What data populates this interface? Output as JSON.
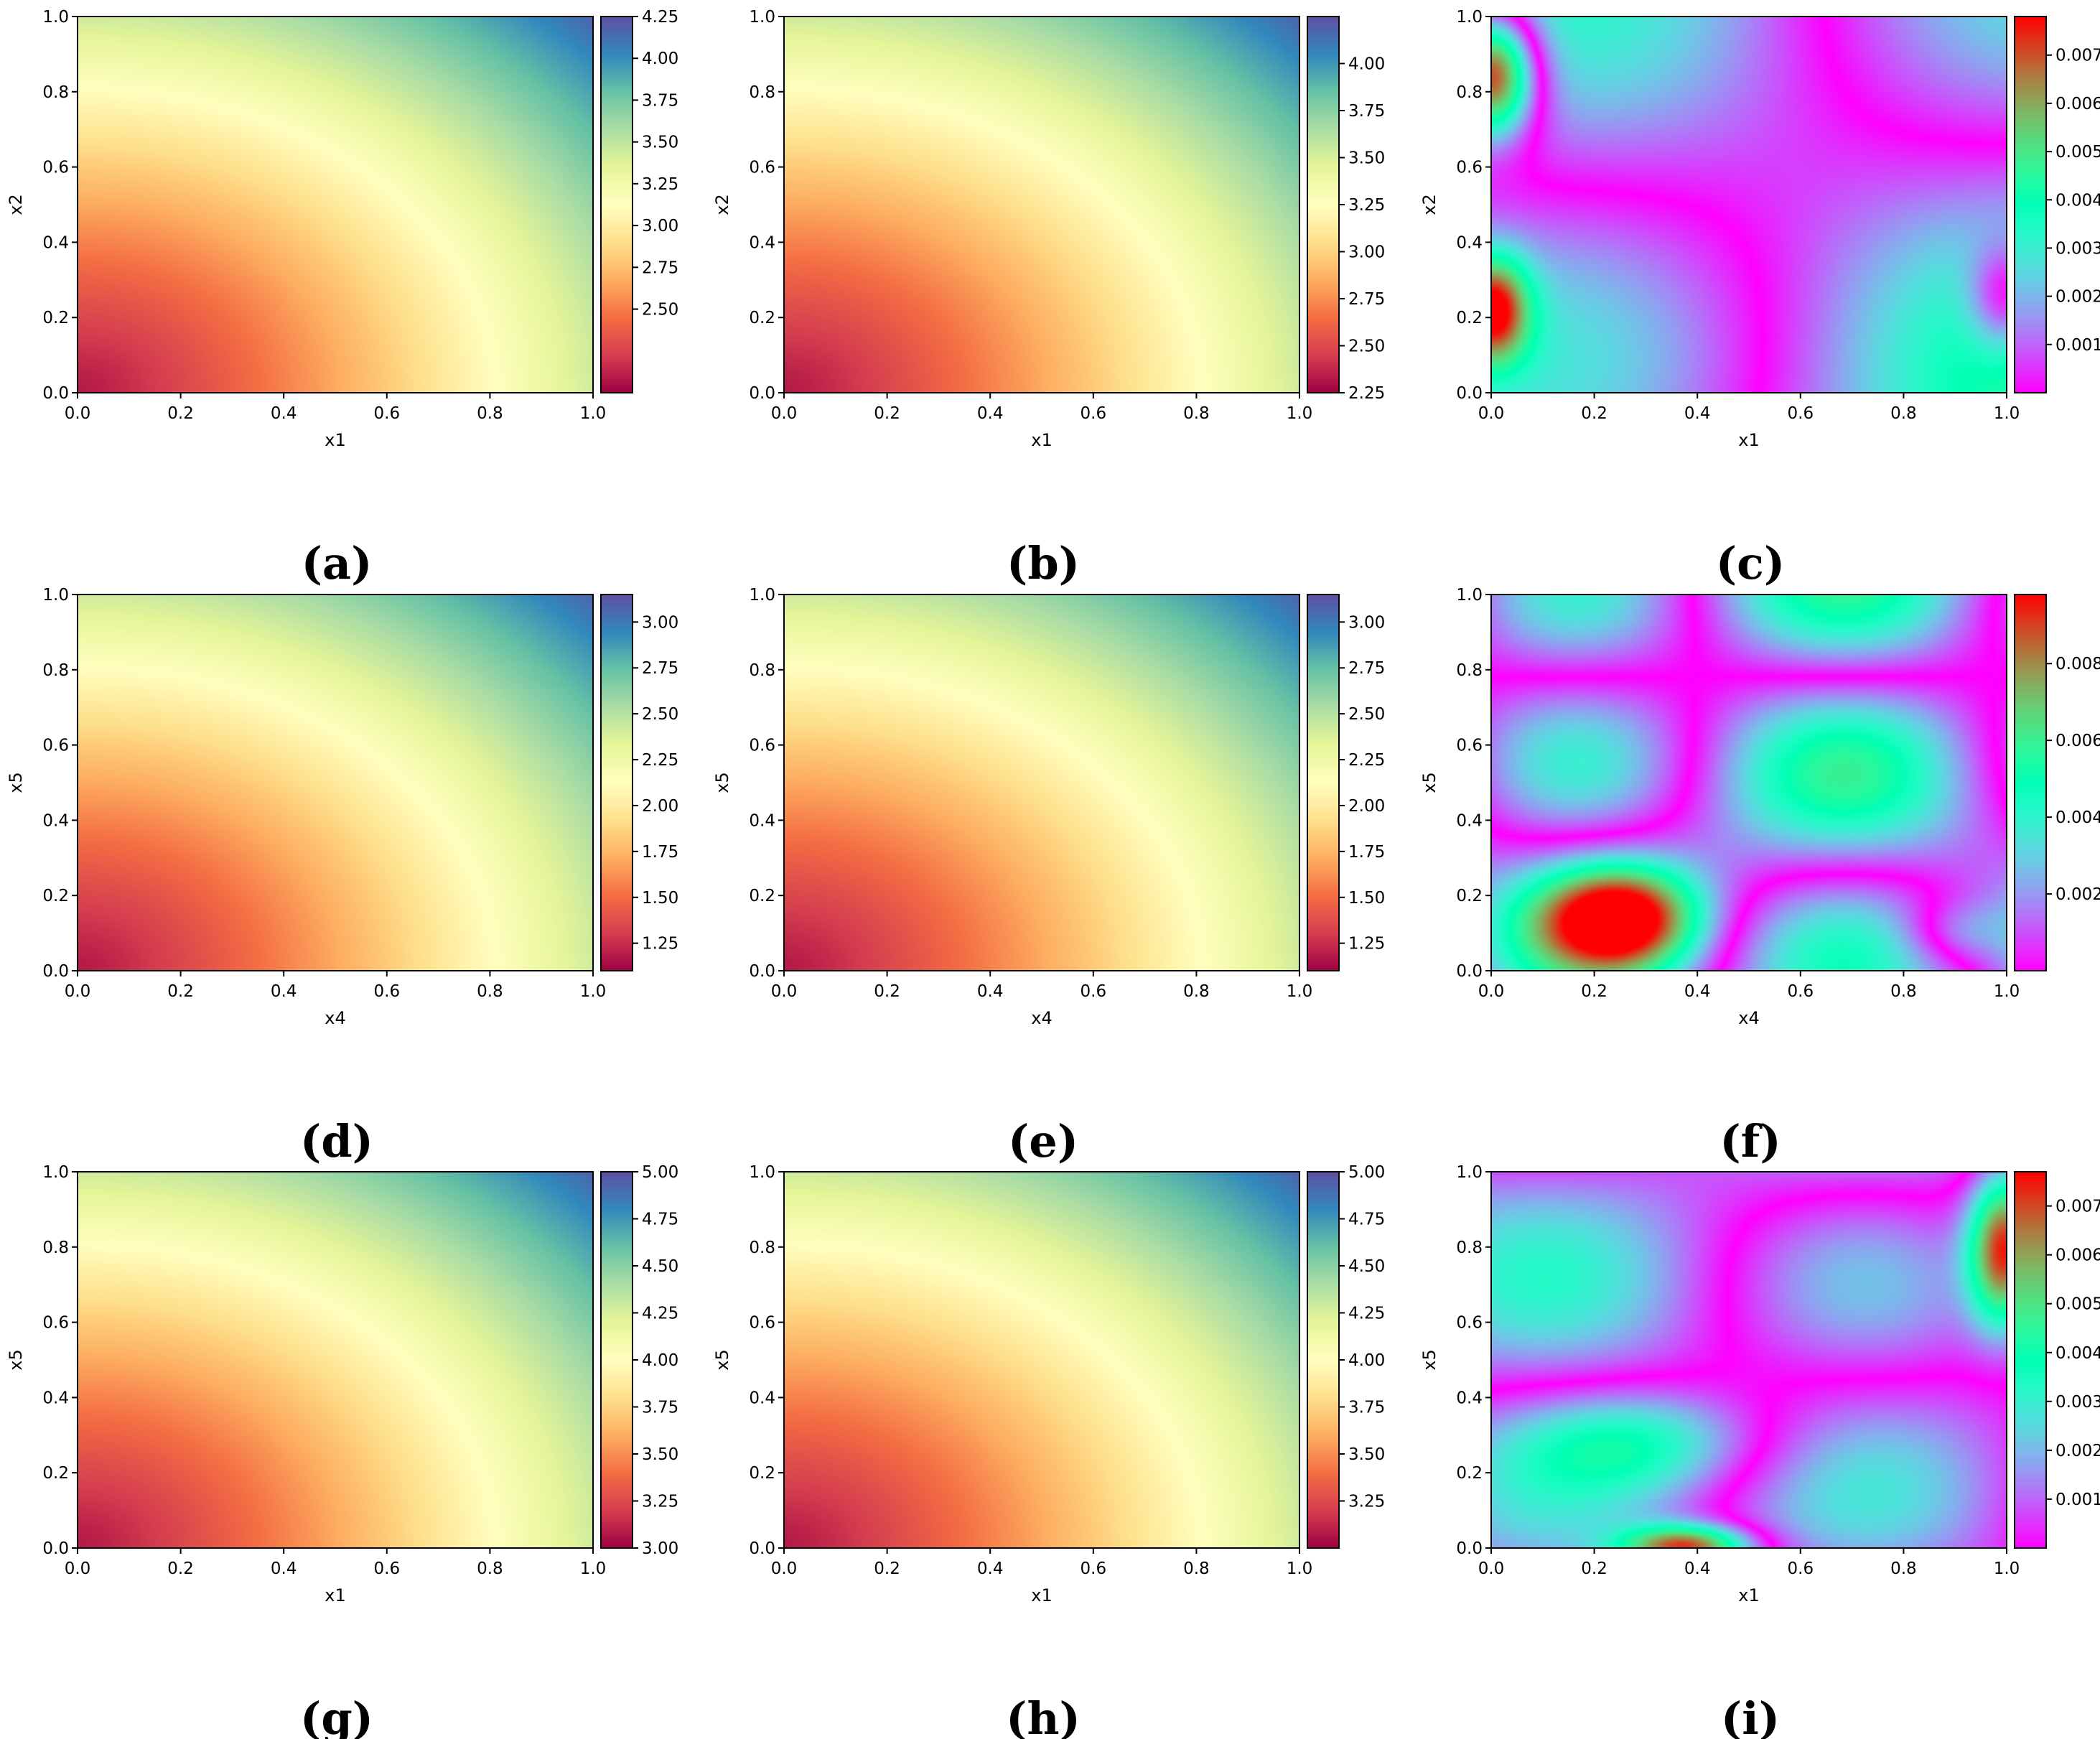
{
  "chart_data": [
    {
      "type": "heatmap",
      "caption": "(a)",
      "xlabel": "x1",
      "ylabel": "x2",
      "xlim": [
        0,
        1
      ],
      "ylim": [
        0,
        1
      ],
      "colormap": "Spectral",
      "xticks": [
        "0.0",
        "0.2",
        "0.4",
        "0.6",
        "0.8",
        "1.0"
      ],
      "yticks": [
        "0.0",
        "0.2",
        "0.4",
        "0.6",
        "0.8",
        "1.0"
      ],
      "colorbar": {
        "min": 2.0,
        "max": 4.25,
        "ticks": [
          2.5,
          2.75,
          3.0,
          3.25,
          3.5,
          3.75,
          4.0,
          4.25
        ],
        "ticklabels": [
          "2.50",
          "2.75",
          "3.00",
          "3.25",
          "3.50",
          "3.75",
          "4.00",
          "4.25"
        ]
      }
    },
    {
      "type": "heatmap",
      "caption": "(b)",
      "xlabel": "x1",
      "ylabel": "x2",
      "xlim": [
        0,
        1
      ],
      "ylim": [
        0,
        1
      ],
      "colormap": "Spectral",
      "xticks": [
        "0.0",
        "0.2",
        "0.4",
        "0.6",
        "0.8",
        "1.0"
      ],
      "yticks": [
        "0.0",
        "0.2",
        "0.4",
        "0.6",
        "0.8",
        "1.0"
      ],
      "colorbar": {
        "min": 2.25,
        "max": 4.25,
        "ticks": [
          2.25,
          2.5,
          2.75,
          3.0,
          3.25,
          3.5,
          3.75,
          4.0
        ],
        "ticklabels": [
          "2.25",
          "2.50",
          "2.75",
          "3.00",
          "3.25",
          "3.50",
          "3.75",
          "4.00"
        ]
      }
    },
    {
      "type": "heatmap",
      "caption": "(c)",
      "xlabel": "x1",
      "ylabel": "x2",
      "xlim": [
        0,
        1
      ],
      "ylim": [
        0,
        1
      ],
      "colormap": "rainbow",
      "xticks": [
        "0.0",
        "0.2",
        "0.4",
        "0.6",
        "0.8",
        "1.0"
      ],
      "yticks": [
        "0.0",
        "0.2",
        "0.4",
        "0.6",
        "0.8",
        "1.0"
      ],
      "colorbar": {
        "min": 0.0,
        "max": 0.0078,
        "ticks": [
          0.001,
          0.002,
          0.003,
          0.004,
          0.005,
          0.006,
          0.007
        ],
        "ticklabels": [
          "0.001",
          "0.002",
          "0.003",
          "0.004",
          "0.005",
          "0.006",
          "0.007"
        ]
      }
    },
    {
      "type": "heatmap",
      "caption": "(d)",
      "xlabel": "x4",
      "ylabel": "x5",
      "xlim": [
        0,
        1
      ],
      "ylim": [
        0,
        1
      ],
      "colormap": "Spectral",
      "xticks": [
        "0.0",
        "0.2",
        "0.4",
        "0.6",
        "0.8",
        "1.0"
      ],
      "yticks": [
        "0.0",
        "0.2",
        "0.4",
        "0.6",
        "0.8",
        "1.0"
      ],
      "colorbar": {
        "min": 1.1,
        "max": 3.15,
        "ticks": [
          1.25,
          1.5,
          1.75,
          2.0,
          2.25,
          2.5,
          2.75,
          3.0
        ],
        "ticklabels": [
          "1.25",
          "1.50",
          "1.75",
          "2.00",
          "2.25",
          "2.50",
          "2.75",
          "3.00"
        ]
      }
    },
    {
      "type": "heatmap",
      "caption": "(e)",
      "xlabel": "x4",
      "ylabel": "x5",
      "xlim": [
        0,
        1
      ],
      "ylim": [
        0,
        1
      ],
      "colormap": "Spectral",
      "xticks": [
        "0.0",
        "0.2",
        "0.4",
        "0.6",
        "0.8",
        "1.0"
      ],
      "yticks": [
        "0.0",
        "0.2",
        "0.4",
        "0.6",
        "0.8",
        "1.0"
      ],
      "colorbar": {
        "min": 1.1,
        "max": 3.15,
        "ticks": [
          1.25,
          1.5,
          1.75,
          2.0,
          2.25,
          2.5,
          2.75,
          3.0
        ],
        "ticklabels": [
          "1.25",
          "1.50",
          "1.75",
          "2.00",
          "2.25",
          "2.50",
          "2.75",
          "3.00"
        ]
      }
    },
    {
      "type": "heatmap",
      "caption": "(f)",
      "xlabel": "x4",
      "ylabel": "x5",
      "xlim": [
        0,
        1
      ],
      "ylim": [
        0,
        1
      ],
      "colormap": "rainbow",
      "xticks": [
        "0.0",
        "0.2",
        "0.4",
        "0.6",
        "0.8",
        "1.0"
      ],
      "yticks": [
        "0.0",
        "0.2",
        "0.4",
        "0.6",
        "0.8",
        "1.0"
      ],
      "colorbar": {
        "min": 0.0,
        "max": 0.0098,
        "ticks": [
          0.002,
          0.004,
          0.006,
          0.008
        ],
        "ticklabels": [
          "0.002",
          "0.004",
          "0.006",
          "0.008"
        ]
      }
    },
    {
      "type": "heatmap",
      "caption": "(g)",
      "xlabel": "x1",
      "ylabel": "x5",
      "xlim": [
        0,
        1
      ],
      "ylim": [
        0,
        1
      ],
      "colormap": "Spectral",
      "xticks": [
        "0.0",
        "0.2",
        "0.4",
        "0.6",
        "0.8",
        "1.0"
      ],
      "yticks": [
        "0.0",
        "0.2",
        "0.4",
        "0.6",
        "0.8",
        "1.0"
      ],
      "colorbar": {
        "min": 3.0,
        "max": 5.0,
        "ticks": [
          3.0,
          3.25,
          3.5,
          3.75,
          4.0,
          4.25,
          4.5,
          4.75,
          5.0
        ],
        "ticklabels": [
          "3.00",
          "3.25",
          "3.50",
          "3.75",
          "4.00",
          "4.25",
          "4.50",
          "4.75",
          "5.00"
        ]
      }
    },
    {
      "type": "heatmap",
      "caption": "(h)",
      "xlabel": "x1",
      "ylabel": "x5",
      "xlim": [
        0,
        1
      ],
      "ylim": [
        0,
        1
      ],
      "colormap": "Spectral",
      "xticks": [
        "0.0",
        "0.2",
        "0.4",
        "0.6",
        "0.8",
        "1.0"
      ],
      "yticks": [
        "0.0",
        "0.2",
        "0.4",
        "0.6",
        "0.8",
        "1.0"
      ],
      "colorbar": {
        "min": 3.0,
        "max": 5.0,
        "ticks": [
          3.25,
          3.5,
          3.75,
          4.0,
          4.25,
          4.5,
          4.75,
          5.0
        ],
        "ticklabels": [
          "3.25",
          "3.50",
          "3.75",
          "4.00",
          "4.25",
          "4.50",
          "4.75",
          "5.00"
        ]
      }
    },
    {
      "type": "heatmap",
      "caption": "(i)",
      "xlabel": "x1",
      "ylabel": "x5",
      "xlim": [
        0,
        1
      ],
      "ylim": [
        0,
        1
      ],
      "colormap": "rainbow",
      "xticks": [
        "0.0",
        "0.2",
        "0.4",
        "0.6",
        "0.8",
        "1.0"
      ],
      "yticks": [
        "0.0",
        "0.2",
        "0.4",
        "0.6",
        "0.8",
        "1.0"
      ],
      "colorbar": {
        "min": 0.0,
        "max": 0.0077,
        "ticks": [
          0.001,
          0.002,
          0.003,
          0.004,
          0.005,
          0.006,
          0.007
        ],
        "ticklabels": [
          "0.001",
          "0.002",
          "0.003",
          "0.004",
          "0.005",
          "0.006",
          "0.007"
        ]
      }
    }
  ]
}
